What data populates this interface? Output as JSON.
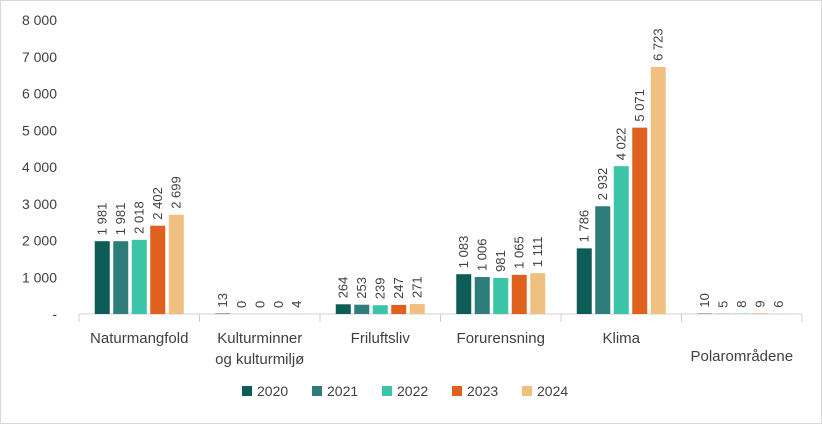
{
  "chart_data": {
    "type": "bar",
    "categories": [
      [
        "Naturmangfold"
      ],
      [
        "Kulturminner",
        "og kulturmiljø"
      ],
      [
        "Friluftsliv"
      ],
      [
        "Forurensning"
      ],
      [
        "Klima"
      ],
      [
        "Polarområdene"
      ]
    ],
    "series": [
      {
        "name": "2020",
        "color": "#0d5c57",
        "values": [
          1981,
          13,
          264,
          1083,
          1786,
          10
        ]
      },
      {
        "name": "2021",
        "color": "#2e7d7a",
        "values": [
          1981,
          0,
          253,
          1006,
          2932,
          5
        ]
      },
      {
        "name": "2022",
        "color": "#3cc4a8",
        "values": [
          2018,
          0,
          239,
          981,
          4022,
          8
        ]
      },
      {
        "name": "2023",
        "color": "#e0601e",
        "values": [
          2402,
          0,
          247,
          1065,
          5071,
          9
        ]
      },
      {
        "name": "2024",
        "color": "#f0c080",
        "values": [
          2699,
          4,
          271,
          1111,
          6723,
          6
        ]
      }
    ],
    "data_labels": [
      [
        "1 981",
        "13",
        "264",
        "1 083",
        "1 786",
        "10"
      ],
      [
        "1 981",
        "0",
        "253",
        "1 006",
        "2 932",
        "5"
      ],
      [
        "2 018",
        "0",
        "239",
        "981",
        "4 022",
        "8"
      ],
      [
        "2 402",
        "0",
        "247",
        "1 065",
        "5 071",
        "9"
      ],
      [
        "2 699",
        "4",
        "271",
        "1 111",
        "6 723",
        "6"
      ]
    ],
    "yticks": [
      0,
      1000,
      2000,
      3000,
      4000,
      5000,
      6000,
      7000,
      8000
    ],
    "ytick_labels": [
      "-",
      "1 000",
      "2 000",
      "3 000",
      "4 000",
      "5 000",
      "6 000",
      "7 000",
      "8 000"
    ],
    "ylim": [
      0,
      8000
    ],
    "title": "",
    "xlabel": "",
    "ylabel": "",
    "grid": false,
    "legend_position": "bottom"
  }
}
